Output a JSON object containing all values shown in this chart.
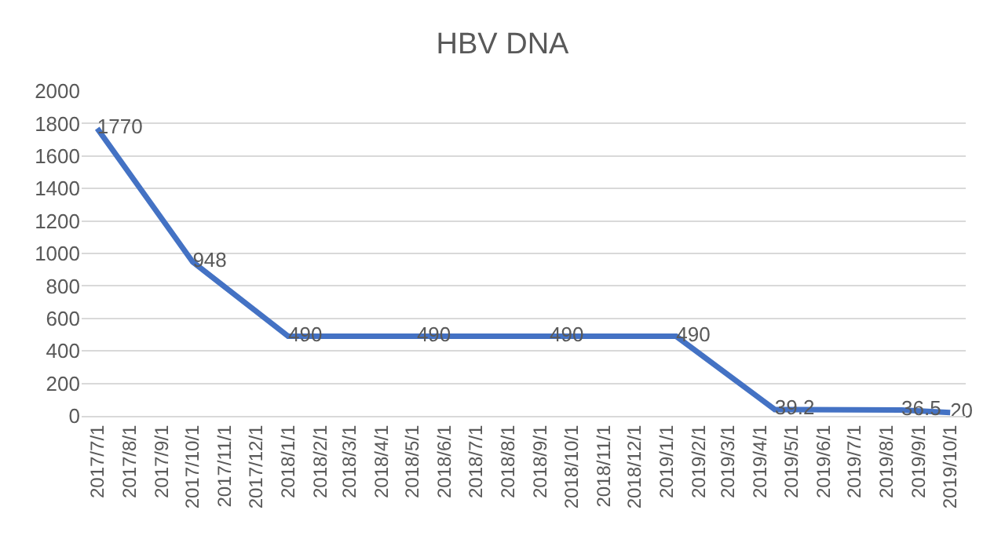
{
  "chart_data": {
    "type": "line",
    "title": "HBV DNA",
    "x": [
      "2017-07-01",
      "2017-10-01",
      "2018-01-01",
      "2018-05-05",
      "2018-09-10",
      "2019-01-10",
      "2019-04-15",
      "2019-08-15",
      "2019-10-01"
    ],
    "series": [
      {
        "color": "#4472c4",
        "values": [
          1770,
          948,
          490,
          490,
          490,
          490,
          39.2,
          36.5,
          20
        ]
      }
    ],
    "data_labels": true,
    "xlim": [
      "2017-06-16",
      "2019-10-16"
    ],
    "xticks": [
      {
        "value": "2017-07-01",
        "label": "2017/7/1"
      },
      {
        "value": "2017-08-01",
        "label": "2017/8/1"
      },
      {
        "value": "2017-09-01",
        "label": "2017/9/1"
      },
      {
        "value": "2017-10-01",
        "label": "2017/10/1"
      },
      {
        "value": "2017-11-01",
        "label": "2017/11/1"
      },
      {
        "value": "2017-12-01",
        "label": "2017/12/1"
      },
      {
        "value": "2018-01-01",
        "label": "2018/1/1"
      },
      {
        "value": "2018-02-01",
        "label": "2018/2/1"
      },
      {
        "value": "2018-03-01",
        "label": "2018/3/1"
      },
      {
        "value": "2018-04-01",
        "label": "2018/4/1"
      },
      {
        "value": "2018-05-01",
        "label": "2018/5/1"
      },
      {
        "value": "2018-06-01",
        "label": "2018/6/1"
      },
      {
        "value": "2018-07-01",
        "label": "2018/7/1"
      },
      {
        "value": "2018-08-01",
        "label": "2018/8/1"
      },
      {
        "value": "2018-09-01",
        "label": "2018/9/1"
      },
      {
        "value": "2018-10-01",
        "label": "2018/10/1"
      },
      {
        "value": "2018-11-01",
        "label": "2018/11/1"
      },
      {
        "value": "2018-12-01",
        "label": "2018/12/1"
      },
      {
        "value": "2019-01-01",
        "label": "2019/1/1"
      },
      {
        "value": "2019-02-01",
        "label": "2019/2/1"
      },
      {
        "value": "2019-03-01",
        "label": "2019/3/1"
      },
      {
        "value": "2019-04-01",
        "label": "2019/4/1"
      },
      {
        "value": "2019-05-01",
        "label": "2019/5/1"
      },
      {
        "value": "2019-06-01",
        "label": "2019/6/1"
      },
      {
        "value": "2019-07-01",
        "label": "2019/7/1"
      },
      {
        "value": "2019-08-01",
        "label": "2019/8/1"
      },
      {
        "value": "2019-09-01",
        "label": "2019/9/1"
      },
      {
        "value": "2019-10-01",
        "label": "2019/10/1"
      }
    ],
    "ylim": [
      0,
      2000
    ],
    "yticks": [
      0,
      200,
      400,
      600,
      800,
      1000,
      1200,
      1400,
      1600,
      1800,
      2000
    ],
    "grid": "y",
    "marker": "none",
    "line_style": "solid"
  }
}
